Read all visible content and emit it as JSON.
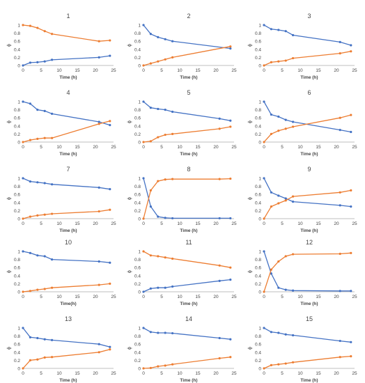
{
  "colors": {
    "series_blue": "#4472c4",
    "series_orange": "#ed7d31",
    "axis": "#bfbfbf",
    "text": "#444444"
  },
  "chart_data": [
    {
      "type": "line",
      "title": "1",
      "xlabel": "Time (h)",
      "ylabel": "ϕ",
      "x": [
        0,
        2,
        4,
        6,
        8,
        21,
        24
      ],
      "xlim": [
        0,
        25
      ],
      "xticks": [
        0,
        5,
        10,
        15,
        20,
        25
      ],
      "ylim": [
        0,
        1
      ],
      "yticks": [
        0,
        0.2,
        0.4,
        0.6,
        0.8,
        1
      ],
      "ytick_labels": [
        "0",
        "0.2",
        "0.4",
        "0.6",
        "0.8",
        "1"
      ],
      "series": [
        {
          "color": "#4472c4",
          "values": [
            0,
            0.07,
            0.08,
            0.1,
            0.14,
            0.2,
            0.24
          ]
        },
        {
          "color": "#ed7d31",
          "values": [
            1,
            0.98,
            0.93,
            0.85,
            0.78,
            0.6,
            0.62
          ]
        }
      ]
    },
    {
      "type": "line",
      "title": "2",
      "xlabel": "Time (h)",
      "ylabel": "ϕ",
      "x": [
        0,
        2,
        4,
        6,
        8,
        24
      ],
      "xlim": [
        0,
        25
      ],
      "xticks": [
        0,
        5,
        10,
        15,
        20,
        25
      ],
      "ylim": [
        0,
        1
      ],
      "yticks": [
        0,
        0.2,
        0.4,
        0.6,
        0.8,
        1
      ],
      "ytick_labels": [
        "0",
        "0.2",
        "0.4",
        "0.6",
        "0.8",
        "1"
      ],
      "series": [
        {
          "color": "#4472c4",
          "values": [
            1,
            0.78,
            0.7,
            0.65,
            0.6,
            0.42
          ]
        },
        {
          "color": "#ed7d31",
          "values": [
            0,
            0.05,
            0.1,
            0.15,
            0.2,
            0.47
          ]
        }
      ]
    },
    {
      "type": "line",
      "title": "3",
      "xlabel": "Time (h)",
      "ylabel": "ϕ",
      "x": [
        0,
        2,
        4,
        6,
        8,
        21,
        24
      ],
      "xlim": [
        0,
        25
      ],
      "xticks": [
        0,
        5,
        10,
        15,
        20,
        25
      ],
      "ylim": [
        0,
        1
      ],
      "yticks": [
        0,
        0.2,
        0.4,
        0.6,
        0.8,
        1
      ],
      "ytick_labels": [
        "0",
        "0.2",
        "0.4",
        "0.6",
        "0.8",
        "1"
      ],
      "series": [
        {
          "color": "#4472c4",
          "values": [
            1,
            0.9,
            0.88,
            0.85,
            0.75,
            0.58,
            0.5
          ]
        },
        {
          "color": "#ed7d31",
          "values": [
            0,
            0.08,
            0.1,
            0.12,
            0.18,
            0.3,
            0.35
          ]
        }
      ]
    },
    {
      "type": "line",
      "title": "4",
      "xlabel": "Time (h)",
      "ylabel": "ϕ",
      "x": [
        0,
        2,
        4,
        6,
        8,
        21,
        24
      ],
      "xlim": [
        0,
        25
      ],
      "xticks": [
        0,
        5,
        10,
        15,
        20,
        25
      ],
      "ylim": [
        0,
        1
      ],
      "yticks": [
        0,
        0.2,
        0.4,
        0.6,
        0.8,
        1
      ],
      "ytick_labels": [
        "0",
        "0.2",
        "0.4",
        "0.6",
        "0.8",
        "1"
      ],
      "series": [
        {
          "color": "#4472c4",
          "values": [
            1,
            0.95,
            0.8,
            0.77,
            0.7,
            0.5,
            0.42
          ]
        },
        {
          "color": "#ed7d31",
          "values": [
            0,
            0.05,
            0.08,
            0.1,
            0.1,
            0.45,
            0.52
          ]
        }
      ]
    },
    {
      "type": "line",
      "title": "5",
      "xlabel": "Time (h)",
      "ylabel": "ϕ",
      "x": [
        0,
        2,
        4,
        6,
        8,
        21,
        24
      ],
      "xlim": [
        0,
        25
      ],
      "xticks": [
        0,
        5,
        10,
        15,
        20,
        25
      ],
      "ylim": [
        0,
        1
      ],
      "yticks": [
        0,
        0.2,
        0.4,
        0.6,
        0.8,
        1
      ],
      "ytick_labels": [
        "0",
        "0.2",
        "0.4",
        "0.6",
        "0.8",
        "1"
      ],
      "series": [
        {
          "color": "#4472c4",
          "values": [
            1,
            0.85,
            0.82,
            0.8,
            0.75,
            0.58,
            0.53
          ]
        },
        {
          "color": "#ed7d31",
          "values": [
            0,
            0.02,
            0.12,
            0.18,
            0.2,
            0.33,
            0.38
          ]
        }
      ]
    },
    {
      "type": "line",
      "title": "6",
      "xlabel": "Time (h)",
      "ylabel": "ϕ",
      "x": [
        0,
        2,
        4,
        6,
        8,
        21,
        24
      ],
      "xlim": [
        0,
        25
      ],
      "xticks": [
        0,
        5,
        10,
        15,
        20,
        25
      ],
      "ylim": [
        0,
        1
      ],
      "yticks": [
        0,
        0.2,
        0.4,
        0.6,
        0.8,
        1
      ],
      "ytick_labels": [
        "0",
        "0.2",
        "0.4",
        "0.6",
        "0.8",
        "1"
      ],
      "series": [
        {
          "color": "#4472c4",
          "values": [
            1,
            0.68,
            0.63,
            0.55,
            0.5,
            0.3,
            0.25
          ]
        },
        {
          "color": "#ed7d31",
          "values": [
            0,
            0.2,
            0.28,
            0.33,
            0.38,
            0.6,
            0.67
          ]
        }
      ]
    },
    {
      "type": "line",
      "title": "7",
      "xlabel": "Time (h)",
      "ylabel": "ϕ",
      "x": [
        0,
        2,
        4,
        6,
        8,
        21,
        24
      ],
      "xlim": [
        0,
        25
      ],
      "xticks": [
        0,
        5,
        10,
        15,
        20,
        25
      ],
      "ylim": [
        0,
        1
      ],
      "yticks": [
        0,
        0.2,
        0.4,
        0.6,
        0.8,
        1
      ],
      "ytick_labels": [
        "0",
        "0.2",
        "0.4",
        "0.6",
        "0.8",
        "1"
      ],
      "series": [
        {
          "color": "#4472c4",
          "values": [
            1,
            0.92,
            0.9,
            0.88,
            0.85,
            0.77,
            0.73
          ]
        },
        {
          "color": "#ed7d31",
          "values": [
            0,
            0.05,
            0.08,
            0.1,
            0.12,
            0.18,
            0.22
          ]
        }
      ]
    },
    {
      "type": "line",
      "title": "8",
      "xlabel": "Time (h)",
      "ylabel": "ϕ",
      "x": [
        0,
        2,
        4,
        6,
        8,
        21,
        24
      ],
      "xlim": [
        0,
        25
      ],
      "xticks": [
        0,
        5,
        10,
        15,
        20,
        25
      ],
      "ylim": [
        0,
        1
      ],
      "yticks": [
        0,
        0.2,
        0.4,
        0.6,
        0.8,
        1
      ],
      "ytick_labels": [
        "0",
        "0.2",
        "0.4",
        "0.6",
        "0.8",
        "1"
      ],
      "series": [
        {
          "color": "#4472c4",
          "values": [
            1,
            0.3,
            0.05,
            0.02,
            0.01,
            0.01,
            0.01
          ]
        },
        {
          "color": "#ed7d31",
          "values": [
            0,
            0.7,
            0.93,
            0.97,
            0.98,
            0.98,
            0.99
          ]
        }
      ]
    },
    {
      "type": "line",
      "title": "9",
      "xlabel": "Time (h)",
      "ylabel": "ϕ",
      "x": [
        0,
        2,
        4,
        6,
        8,
        21,
        24
      ],
      "xlim": [
        0,
        25
      ],
      "xticks": [
        0,
        5,
        10,
        15,
        20,
        25
      ],
      "ylim": [
        0,
        1
      ],
      "yticks": [
        0,
        0.2,
        0.4,
        0.6,
        0.8,
        1
      ],
      "ytick_labels": [
        "0",
        "0.2",
        "0.4",
        "0.6",
        "0.8",
        "1"
      ],
      "series": [
        {
          "color": "#4472c4",
          "values": [
            1,
            0.65,
            0.57,
            0.5,
            0.42,
            0.33,
            0.3
          ]
        },
        {
          "color": "#ed7d31",
          "values": [
            0,
            0.3,
            0.38,
            0.45,
            0.55,
            0.65,
            0.7
          ]
        }
      ]
    },
    {
      "type": "line",
      "title": "10",
      "xlabel": "Time(h)",
      "ylabel": "ϕ",
      "x": [
        0,
        2,
        4,
        6,
        8,
        21,
        24
      ],
      "xlim": [
        0,
        25
      ],
      "xticks": [
        0,
        5,
        10,
        15,
        20,
        25
      ],
      "ylim": [
        0,
        1
      ],
      "yticks": [
        0,
        0.2,
        0.4,
        0.6,
        0.8,
        1
      ],
      "ytick_labels": [
        "0",
        "0.2",
        "0.4",
        "0.6",
        "0.8",
        "1"
      ],
      "series": [
        {
          "color": "#4472c4",
          "values": [
            1,
            0.96,
            0.9,
            0.88,
            0.8,
            0.75,
            0.72
          ]
        },
        {
          "color": "#ed7d31",
          "values": [
            0,
            0.02,
            0.05,
            0.07,
            0.1,
            0.17,
            0.2
          ]
        }
      ]
    },
    {
      "type": "line",
      "title": "11",
      "xlabel": "Time (h)",
      "ylabel": "ϕ",
      "x": [
        0,
        2,
        4,
        6,
        8,
        21,
        24
      ],
      "xlim": [
        0,
        25
      ],
      "xticks": [
        0,
        5,
        10,
        15,
        20,
        25
      ],
      "ylim": [
        0,
        1
      ],
      "yticks": [
        0,
        0.2,
        0.4,
        0.6,
        0.8,
        1
      ],
      "ytick_labels": [
        "0",
        "0.2",
        "0.4",
        "0.6",
        "0.8",
        "1"
      ],
      "series": [
        {
          "color": "#4472c4",
          "values": [
            0,
            0.08,
            0.1,
            0.1,
            0.13,
            0.27,
            0.3
          ]
        },
        {
          "color": "#ed7d31",
          "values": [
            1,
            0.9,
            0.88,
            0.85,
            0.82,
            0.65,
            0.6
          ]
        }
      ]
    },
    {
      "type": "line",
      "title": "12",
      "xlabel": "Time (h)",
      "ylabel": "ϕ",
      "x": [
        0,
        2,
        4,
        6,
        8,
        21,
        24
      ],
      "xlim": [
        0,
        25
      ],
      "xticks": [
        0,
        5,
        10,
        15,
        20,
        25
      ],
      "ylim": [
        0,
        1
      ],
      "yticks": [
        0,
        0.2,
        0.4,
        0.6,
        0.8,
        1
      ],
      "ytick_labels": [
        "0",
        "0.2",
        "0.4",
        "0.6",
        "0.8",
        "1"
      ],
      "series": [
        {
          "color": "#4472c4",
          "values": [
            1,
            0.45,
            0.1,
            0.05,
            0.03,
            0.02,
            0.02
          ]
        },
        {
          "color": "#ed7d31",
          "values": [
            0,
            0.55,
            0.75,
            0.88,
            0.93,
            0.94,
            0.96
          ]
        }
      ]
    },
    {
      "type": "line",
      "title": "13",
      "xlabel": "Time (h)",
      "ylabel": "ϕ",
      "x": [
        0,
        2,
        4,
        6,
        8,
        21,
        24
      ],
      "xlim": [
        0,
        25
      ],
      "xticks": [
        0,
        5,
        10,
        15,
        20,
        25
      ],
      "ylim": [
        0,
        1
      ],
      "yticks": [
        0,
        0.2,
        0.4,
        0.6,
        0.8,
        1
      ],
      "ytick_labels": [
        "0",
        "0.2",
        "0.4",
        "0.6",
        "0.8",
        "1"
      ],
      "series": [
        {
          "color": "#4472c4",
          "values": [
            1,
            0.77,
            0.75,
            0.72,
            0.7,
            0.6,
            0.53
          ]
        },
        {
          "color": "#ed7d31",
          "values": [
            0,
            0.2,
            0.22,
            0.27,
            0.28,
            0.4,
            0.47
          ]
        }
      ]
    },
    {
      "type": "line",
      "title": "14",
      "xlabel": "Time (h)",
      "ylabel": "ϕ",
      "x": [
        0,
        2,
        4,
        6,
        8,
        21,
        24
      ],
      "xlim": [
        0,
        25
      ],
      "xticks": [
        0,
        5,
        10,
        15,
        20,
        25
      ],
      "ylim": [
        0,
        1
      ],
      "yticks": [
        0,
        0.2,
        0.4,
        0.6,
        0.8,
        1
      ],
      "ytick_labels": [
        "0",
        "0.2",
        "0.4",
        "0.6",
        "0.8",
        "1"
      ],
      "series": [
        {
          "color": "#4472c4",
          "values": [
            1,
            0.9,
            0.88,
            0.88,
            0.87,
            0.75,
            0.72
          ]
        },
        {
          "color": "#ed7d31",
          "values": [
            0,
            0.01,
            0.05,
            0.07,
            0.1,
            0.25,
            0.28
          ]
        }
      ]
    },
    {
      "type": "line",
      "title": "15",
      "xlabel": "Time (h)",
      "ylabel": "ϕ",
      "x": [
        0,
        2,
        4,
        6,
        8,
        21,
        24
      ],
      "xlim": [
        0,
        25
      ],
      "xticks": [
        0,
        5,
        10,
        15,
        20,
        25
      ],
      "ylim": [
        0,
        1
      ],
      "yticks": [
        0,
        0.2,
        0.4,
        0.6,
        0.8,
        1
      ],
      "ytick_labels": [
        "0",
        "0.2",
        "0.4",
        "0.6",
        "0.8",
        "1"
      ],
      "series": [
        {
          "color": "#4472c4",
          "values": [
            1,
            0.9,
            0.88,
            0.84,
            0.82,
            0.68,
            0.65
          ]
        },
        {
          "color": "#ed7d31",
          "values": [
            0,
            0.08,
            0.1,
            0.12,
            0.15,
            0.28,
            0.3
          ]
        }
      ]
    }
  ]
}
